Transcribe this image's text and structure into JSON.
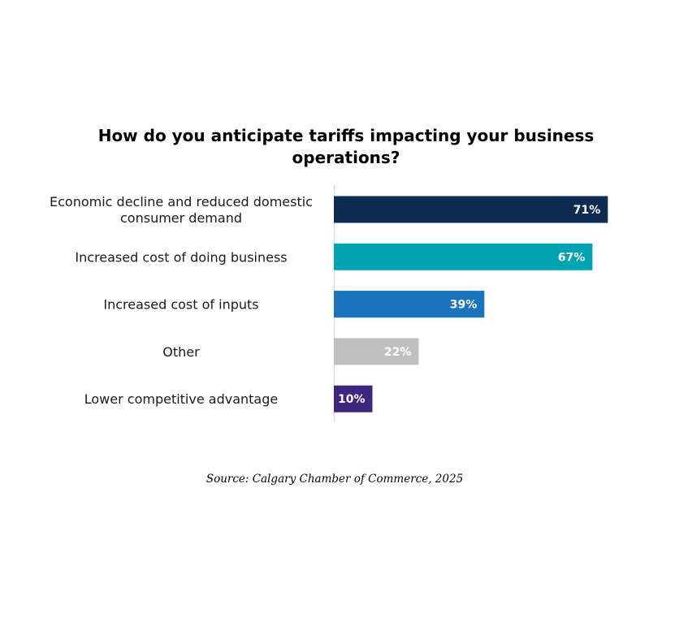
{
  "chart_data": {
    "type": "bar",
    "orientation": "horizontal",
    "title": "How do you anticipate tariffs impacting your business operations?",
    "categories": [
      "Economic decline and reduced domestic consumer demand",
      "Increased cost of doing business",
      "Increased cost of inputs",
      "Other",
      "Lower competitive advantage"
    ],
    "category_lines": [
      [
        "Economic decline and reduced domestic",
        "consumer demand"
      ],
      [
        "Increased cost of doing business"
      ],
      [
        "Increased cost of inputs"
      ],
      [
        "Other"
      ],
      [
        "Lower competitive advantage"
      ]
    ],
    "values": [
      71,
      67,
      39,
      22,
      10
    ],
    "data_labels": [
      "71%",
      "67%",
      "39%",
      "22%",
      "10%"
    ],
    "colors": [
      "#0e2b52",
      "#00a3b0",
      "#1a73be",
      "#c0c0c0",
      "#3e2580"
    ],
    "xlim": [
      0,
      100
    ],
    "unit": "%",
    "grid": false,
    "legend": "none",
    "xlabel": "",
    "ylabel": ""
  },
  "source": "Source: Calgary Chamber of Commerce, 2025"
}
